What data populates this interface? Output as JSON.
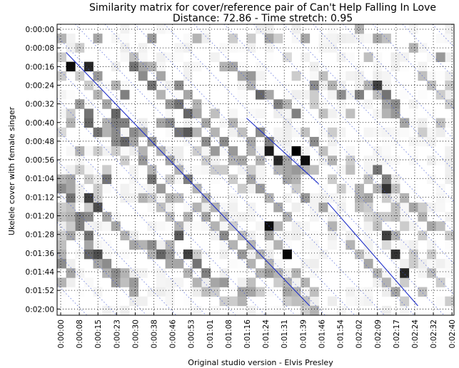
{
  "chart_data": {
    "type": "heatmap",
    "title": "Similarity matrix for cover/reference pair of Can't Help Falling In Love",
    "subtitle": "Distance: 72.86 - Time stretch: 0.95",
    "xlabel": "Original studio version - Elvis Presley",
    "ylabel": "Ukelele cover with female singer",
    "x_ticks": [
      "0:00:00",
      "0:00:08",
      "0:00:15",
      "0:00:23",
      "0:00:30",
      "0:00:38",
      "0:00:46",
      "0:00:53",
      "0:01:01",
      "0:01:08",
      "0:01:16",
      "0:01:24",
      "0:01:31",
      "0:01:39",
      "0:01:46",
      "0:01:54",
      "0:02:02",
      "0:02:09",
      "0:02:17",
      "0:02:24",
      "0:02:32",
      "0:02:40"
    ],
    "y_ticks": [
      "0:00:00",
      "0:00:08",
      "0:00:16",
      "0:00:24",
      "0:00:32",
      "0:00:40",
      "0:00:48",
      "0:00:56",
      "0:01:04",
      "0:01:12",
      "0:01:20",
      "0:01:28",
      "0:01:36",
      "0:01:44",
      "0:01:52",
      "0:02:00"
    ],
    "grid": true,
    "colormap": "grayscale (white = low similarity, black = high)",
    "grid_size": {
      "cols": 44,
      "rows": 31
    },
    "strong_cells": [
      [
        3,
        4,
        0.85
      ],
      [
        4,
        5,
        0.4
      ],
      [
        6,
        6,
        0.3
      ],
      [
        7,
        7,
        0.5
      ],
      [
        2,
        8,
        0.3
      ],
      [
        1,
        9,
        0.2
      ],
      [
        0,
        11,
        0.15
      ],
      [
        2,
        13,
        0.3
      ],
      [
        2,
        15,
        0.2
      ],
      [
        5,
        10,
        0.3
      ],
      [
        6,
        10,
        0.5
      ],
      [
        6,
        11,
        0.45
      ],
      [
        7,
        12,
        0.6
      ],
      [
        8,
        12,
        0.35
      ],
      [
        9,
        13,
        0.3
      ],
      [
        9,
        14,
        0.4
      ],
      [
        10,
        15,
        0.3
      ],
      [
        10,
        16,
        0.55
      ],
      [
        11,
        17,
        0.4
      ],
      [
        12,
        18,
        0.3
      ],
      [
        13,
        18,
        0.25
      ],
      [
        12,
        16,
        0.2
      ],
      [
        15,
        19,
        0.3
      ],
      [
        16,
        20,
        0.35
      ],
      [
        17,
        21,
        0.3
      ],
      [
        18,
        22,
        0.45
      ],
      [
        19,
        23,
        0.3
      ],
      [
        20,
        24,
        0.4
      ],
      [
        21,
        25,
        0.3
      ],
      [
        22,
        26,
        0.3
      ],
      [
        23,
        26,
        0.4
      ],
      [
        24,
        27,
        0.2
      ],
      [
        25,
        28,
        0.35
      ],
      [
        26,
        29,
        0.3
      ],
      [
        27,
        29,
        0.4
      ],
      [
        27,
        30,
        0.25
      ],
      [
        28,
        30,
        0.3
      ],
      [
        8,
        3,
        0.3
      ],
      [
        9,
        4,
        0.35
      ],
      [
        10,
        4,
        0.3
      ],
      [
        11,
        5,
        0.35
      ],
      [
        13,
        6,
        0.45
      ],
      [
        14,
        7,
        0.35
      ],
      [
        15,
        8,
        0.3
      ],
      [
        17,
        9,
        0.25
      ],
      [
        19,
        10,
        0.3
      ],
      [
        20,
        11,
        0.25
      ],
      [
        21,
        12,
        0.35
      ],
      [
        21,
        13,
        0.3
      ],
      [
        22,
        14,
        0.3
      ],
      [
        24,
        15,
        0.3
      ],
      [
        25,
        16,
        0.35
      ],
      [
        26,
        17,
        0.2
      ],
      [
        27,
        18,
        0.4
      ],
      [
        29,
        19,
        0.35
      ],
      [
        30,
        21,
        0.3
      ],
      [
        32,
        23,
        0.3
      ],
      [
        33,
        24,
        0.25
      ],
      [
        34,
        25,
        0.35
      ],
      [
        35,
        26,
        0.3
      ],
      [
        36,
        27,
        0.3
      ],
      [
        37,
        28,
        0.35
      ],
      [
        38,
        29,
        0.2
      ],
      [
        0,
        1,
        0.3
      ],
      [
        2,
        2,
        0.2
      ],
      [
        4,
        1,
        0.35
      ],
      [
        10,
        1,
        0.4
      ],
      [
        15,
        1,
        0.3
      ],
      [
        19,
        1,
        0.2
      ],
      [
        21,
        1,
        0.2
      ],
      [
        23,
        1,
        0.35
      ],
      [
        24,
        1,
        0.2
      ],
      [
        27,
        1,
        0.35
      ],
      [
        33,
        0,
        0.3
      ],
      [
        35,
        1,
        0.35
      ],
      [
        36,
        1,
        0.25
      ],
      [
        39,
        2,
        0.3
      ],
      [
        42,
        3,
        0.4
      ],
      [
        34,
        3,
        0.25
      ],
      [
        25,
        3,
        0.15
      ],
      [
        0,
        3,
        0.2
      ],
      [
        0,
        5,
        0.2
      ],
      [
        0,
        16,
        0.3
      ],
      [
        0,
        17,
        0.45
      ],
      [
        1,
        18,
        0.55
      ],
      [
        1,
        17,
        0.35
      ],
      [
        0,
        24,
        0.3
      ],
      [
        0,
        25,
        0.45
      ],
      [
        0,
        27,
        0.3
      ],
      [
        1,
        26,
        0.35
      ],
      [
        0,
        23,
        0.25
      ],
      [
        34,
        6,
        0.3
      ],
      [
        35,
        7,
        0.25
      ],
      [
        36,
        8,
        0.35
      ],
      [
        36,
        9,
        0.3
      ],
      [
        38,
        10,
        0.3
      ],
      [
        40,
        11,
        0.2
      ],
      [
        43,
        8,
        0.2
      ],
      [
        42,
        10,
        0.25
      ],
      [
        28,
        8,
        0.2
      ],
      [
        30,
        11,
        0.2
      ],
      [
        32,
        14,
        0.2
      ],
      [
        31,
        17,
        0.2
      ],
      [
        36,
        18,
        0.2
      ],
      [
        37,
        19,
        0.25
      ],
      [
        38,
        21,
        0.2
      ],
      [
        40,
        22,
        0.2
      ],
      [
        41,
        24,
        0.2
      ],
      [
        39,
        25,
        0.2
      ],
      [
        34,
        18,
        0.35
      ],
      [
        33,
        17,
        0.3
      ],
      [
        34,
        16,
        0.25
      ],
      [
        33,
        7,
        0.5
      ],
      [
        32,
        9,
        0.25
      ],
      [
        30,
        16,
        0.2
      ],
      [
        34,
        20,
        0.15
      ],
      [
        36,
        23,
        0.15
      ]
    ],
    "diagonal_cells": [
      [
        0,
        3,
        0.2
      ],
      [
        1,
        4,
        0.3
      ],
      [
        2,
        5,
        0.2
      ],
      [
        3,
        6,
        0.2
      ],
      [
        4,
        7,
        0.3
      ],
      [
        5,
        8,
        0.35
      ],
      [
        6,
        9,
        0.6
      ],
      [
        7,
        10,
        0.5
      ],
      [
        8,
        11,
        0.45
      ],
      [
        9,
        11,
        0.35
      ],
      [
        10,
        12,
        0.4
      ],
      [
        11,
        13,
        0.3
      ],
      [
        12,
        14,
        0.35
      ],
      [
        13,
        15,
        0.3
      ],
      [
        14,
        16,
        0.5
      ],
      [
        15,
        17,
        0.3
      ],
      [
        16,
        18,
        0.3
      ],
      [
        17,
        19,
        0.3
      ],
      [
        18,
        20,
        0.25
      ],
      [
        19,
        21,
        0.2
      ],
      [
        20,
        22,
        0.25
      ],
      [
        21,
        23,
        0.3
      ],
      [
        22,
        24,
        0.3
      ],
      [
        23,
        25,
        0.3
      ],
      [
        24,
        26,
        0.3
      ],
      [
        25,
        27,
        0.3
      ],
      [
        26,
        28,
        0.3
      ],
      [
        27,
        29,
        0.25
      ],
      [
        28,
        30,
        0.3
      ]
    ],
    "dark_cells": [
      [
        1,
        4,
        0.95
      ],
      [
        2,
        8,
        0.4
      ],
      [
        3,
        9,
        0.55
      ],
      [
        3,
        10,
        0.6
      ],
      [
        4,
        11,
        0.55
      ],
      [
        5,
        11,
        0.3
      ],
      [
        6,
        12,
        0.45
      ],
      [
        1,
        10,
        0.3
      ],
      [
        8,
        3,
        0.25
      ],
      [
        8,
        4,
        0.55
      ],
      [
        9,
        5,
        0.45
      ],
      [
        10,
        6,
        0.55
      ],
      [
        11,
        7,
        0.3
      ],
      [
        12,
        8,
        0.4
      ],
      [
        13,
        8,
        0.55
      ],
      [
        14,
        9,
        0.6
      ],
      [
        15,
        9,
        0.35
      ],
      [
        16,
        10,
        0.35
      ],
      [
        17,
        11,
        0.3
      ],
      [
        18,
        12,
        0.45
      ],
      [
        19,
        13,
        0.4
      ],
      [
        20,
        14,
        0.35
      ],
      [
        21,
        16,
        0.35
      ],
      [
        22,
        17,
        0.4
      ],
      [
        23,
        18,
        0.3
      ],
      [
        24,
        19,
        0.35
      ],
      [
        25,
        20,
        0.3
      ],
      [
        11,
        10,
        0.35
      ],
      [
        12,
        10,
        0.45
      ],
      [
        13,
        11,
        0.55
      ],
      [
        14,
        11,
        0.65
      ],
      [
        15,
        11,
        0.3
      ],
      [
        16,
        12,
        0.45
      ],
      [
        17,
        13,
        0.4
      ],
      [
        19,
        14,
        0.3
      ],
      [
        21,
        15,
        0.2
      ],
      [
        22,
        11,
        0.45
      ],
      [
        23,
        12,
        0.5
      ],
      [
        25,
        15,
        0.35
      ],
      [
        26,
        16,
        0.3
      ],
      [
        27,
        14,
        0.25
      ],
      [
        23,
        13,
        0.9
      ],
      [
        24,
        14,
        0.85
      ],
      [
        25,
        14,
        0.35
      ],
      [
        26,
        15,
        0.4
      ],
      [
        27,
        15,
        0.3
      ],
      [
        28,
        15,
        0.25
      ],
      [
        18,
        4,
        0.3
      ],
      [
        19,
        4,
        0.35
      ],
      [
        20,
        5,
        0.35
      ],
      [
        21,
        5,
        0.4
      ],
      [
        21,
        6,
        0.3
      ],
      [
        22,
        7,
        0.6
      ],
      [
        23,
        7,
        0.35
      ],
      [
        24,
        8,
        0.5
      ],
      [
        25,
        8,
        0.3
      ],
      [
        26,
        9,
        0.5
      ],
      [
        28,
        7,
        0.2
      ],
      [
        30,
        6,
        0.3
      ],
      [
        29,
        9,
        0.25
      ],
      [
        27,
        11,
        0.25
      ],
      [
        28,
        12,
        0.45
      ],
      [
        29,
        13,
        0.25
      ],
      [
        30,
        14,
        0.3
      ],
      [
        23,
        21,
        0.95
      ],
      [
        24,
        21,
        0.3
      ],
      [
        23,
        22,
        0.35
      ],
      [
        24,
        23,
        0.3
      ],
      [
        25,
        24,
        0.35
      ],
      [
        26,
        26,
        0.3
      ],
      [
        27,
        27,
        0.3
      ],
      [
        28,
        28,
        0.25
      ],
      [
        5,
        20,
        0.35
      ],
      [
        6,
        21,
        0.35
      ],
      [
        7,
        22,
        0.3
      ],
      [
        8,
        23,
        0.35
      ],
      [
        9,
        23,
        0.3
      ],
      [
        10,
        24,
        0.3
      ],
      [
        11,
        24,
        0.45
      ],
      [
        12,
        25,
        0.35
      ],
      [
        13,
        25,
        0.3
      ],
      [
        14,
        26,
        0.3
      ],
      [
        15,
        27,
        0.3
      ],
      [
        16,
        28,
        0.25
      ],
      [
        17,
        28,
        0.2
      ],
      [
        18,
        29,
        0.2
      ],
      [
        19,
        29,
        0.2
      ],
      [
        20,
        29,
        0.3
      ],
      [
        2,
        21,
        0.5
      ],
      [
        1,
        22,
        0.35
      ],
      [
        3,
        23,
        0.35
      ],
      [
        3,
        24,
        0.6
      ],
      [
        4,
        25,
        0.35
      ],
      [
        5,
        26,
        0.3
      ],
      [
        6,
        27,
        0.4
      ],
      [
        7,
        27,
        0.25
      ],
      [
        8,
        28,
        0.35
      ],
      [
        21,
        27,
        0.25
      ],
      [
        20,
        28,
        0.35
      ],
      [
        22,
        28,
        0.2
      ],
      [
        25,
        29,
        0.2
      ],
      [
        27,
        30,
        0.2
      ],
      [
        26,
        29,
        0.25
      ],
      [
        14,
        20,
        0.3
      ],
      [
        13,
        21,
        0.3
      ],
      [
        13,
        22,
        0.65
      ],
      [
        12,
        23,
        0.3
      ],
      [
        12,
        24,
        0.4
      ],
      [
        14,
        24,
        0.25
      ],
      [
        15,
        25,
        0.35
      ],
      [
        16,
        26,
        0.3
      ],
      [
        15,
        24,
        0.2
      ],
      [
        11,
        19,
        0.25
      ],
      [
        10,
        18,
        0.2
      ],
      [
        12,
        20,
        0.25
      ],
      [
        9,
        18,
        0.3
      ],
      [
        28,
        6,
        0.45
      ],
      [
        31,
        7,
        0.45
      ],
      [
        29,
        5,
        0.25
      ],
      [
        26,
        5,
        0.2
      ],
      [
        32,
        15,
        0.25
      ],
      [
        36,
        16,
        0.25
      ],
      [
        37,
        17,
        0.25
      ],
      [
        35,
        17,
        0.3
      ],
      [
        38,
        18,
        0.3
      ],
      [
        39,
        19,
        0.35
      ],
      [
        40,
        20,
        0.3
      ],
      [
        41,
        21,
        0.35
      ],
      [
        42,
        21,
        0.25
      ],
      [
        43,
        22,
        0.2
      ],
      [
        40,
        19,
        0.2
      ],
      [
        40,
        5,
        0.25
      ],
      [
        41,
        6,
        0.25
      ],
      [
        42,
        7,
        0.2
      ],
      [
        43,
        6,
        0.2
      ],
      [
        35,
        21,
        0.25
      ],
      [
        37,
        22,
        0.3
      ],
      [
        39,
        24,
        0.2
      ],
      [
        41,
        26,
        0.25
      ],
      [
        42,
        27,
        0.2
      ],
      [
        43,
        29,
        0.2
      ],
      [
        38,
        27,
        0.2
      ],
      [
        40,
        28,
        0.25
      ],
      [
        0,
        19,
        0.2
      ],
      [
        0,
        20,
        0.25
      ],
      [
        1,
        19,
        0.25
      ],
      [
        0,
        22,
        0.2
      ],
      [
        1,
        21,
        0.2
      ],
      [
        3,
        19,
        0.2
      ],
      [
        4,
        18,
        0.2
      ],
      [
        33,
        18,
        0.3
      ],
      [
        33,
        19,
        0.25
      ],
      [
        34,
        19,
        0.2
      ],
      [
        35,
        20,
        0.2
      ],
      [
        36,
        20,
        0.2
      ],
      [
        37,
        20,
        0.25
      ],
      [
        15,
        13,
        0.2
      ],
      [
        16,
        14,
        0.2
      ],
      [
        17,
        15,
        0.2
      ],
      [
        18,
        15,
        0.2
      ],
      [
        19,
        16,
        0.2
      ],
      [
        20,
        17,
        0.2
      ],
      [
        6,
        13,
        0.2
      ],
      [
        7,
        14,
        0.2
      ],
      [
        4,
        13,
        0.2
      ],
      [
        5,
        15,
        0.2
      ],
      [
        3,
        16,
        0.2
      ],
      [
        4,
        17,
        0.2
      ]
    ],
    "extra_cells": [
      [
        26,
        13,
        1.0
      ],
      [
        27,
        14,
        0.95
      ],
      [
        25,
        24,
        0.97
      ],
      [
        37,
        24,
        0.8
      ],
      [
        38,
        26,
        0.85
      ],
      [
        36,
        22,
        0.75
      ],
      [
        35,
        15,
        0.55
      ],
      [
        36,
        17,
        0.8
      ],
      [
        36,
        16,
        0.5
      ],
      [
        35,
        6,
        0.75
      ],
      [
        36,
        7,
        0.55
      ],
      [
        37,
        8,
        0.45
      ],
      [
        37,
        9,
        0.4
      ],
      [
        38,
        10,
        0.35
      ],
      [
        3,
        18,
        0.75
      ],
      [
        4,
        19,
        0.7
      ],
      [
        5,
        16,
        0.55
      ],
      [
        1,
        16,
        0.35
      ],
      [
        3,
        20,
        0.45
      ],
      [
        1,
        20,
        0.3
      ],
      [
        2,
        20,
        0.5
      ],
      [
        3,
        22,
        0.55
      ],
      [
        4,
        24,
        0.7
      ],
      [
        5,
        25,
        0.45
      ],
      [
        6,
        26,
        0.45
      ],
      [
        7,
        26,
        0.3
      ],
      [
        8,
        27,
        0.4
      ],
      [
        10,
        23,
        0.45
      ],
      [
        11,
        24,
        0.6
      ],
      [
        13,
        25,
        0.35
      ],
      [
        14,
        24,
        0.75
      ],
      [
        15,
        25,
        0.55
      ],
      [
        16,
        26,
        0.5
      ],
      [
        17,
        27,
        0.35
      ],
      [
        18,
        27,
        0.4
      ],
      [
        21,
        28,
        0.35
      ]
    ]
  }
}
